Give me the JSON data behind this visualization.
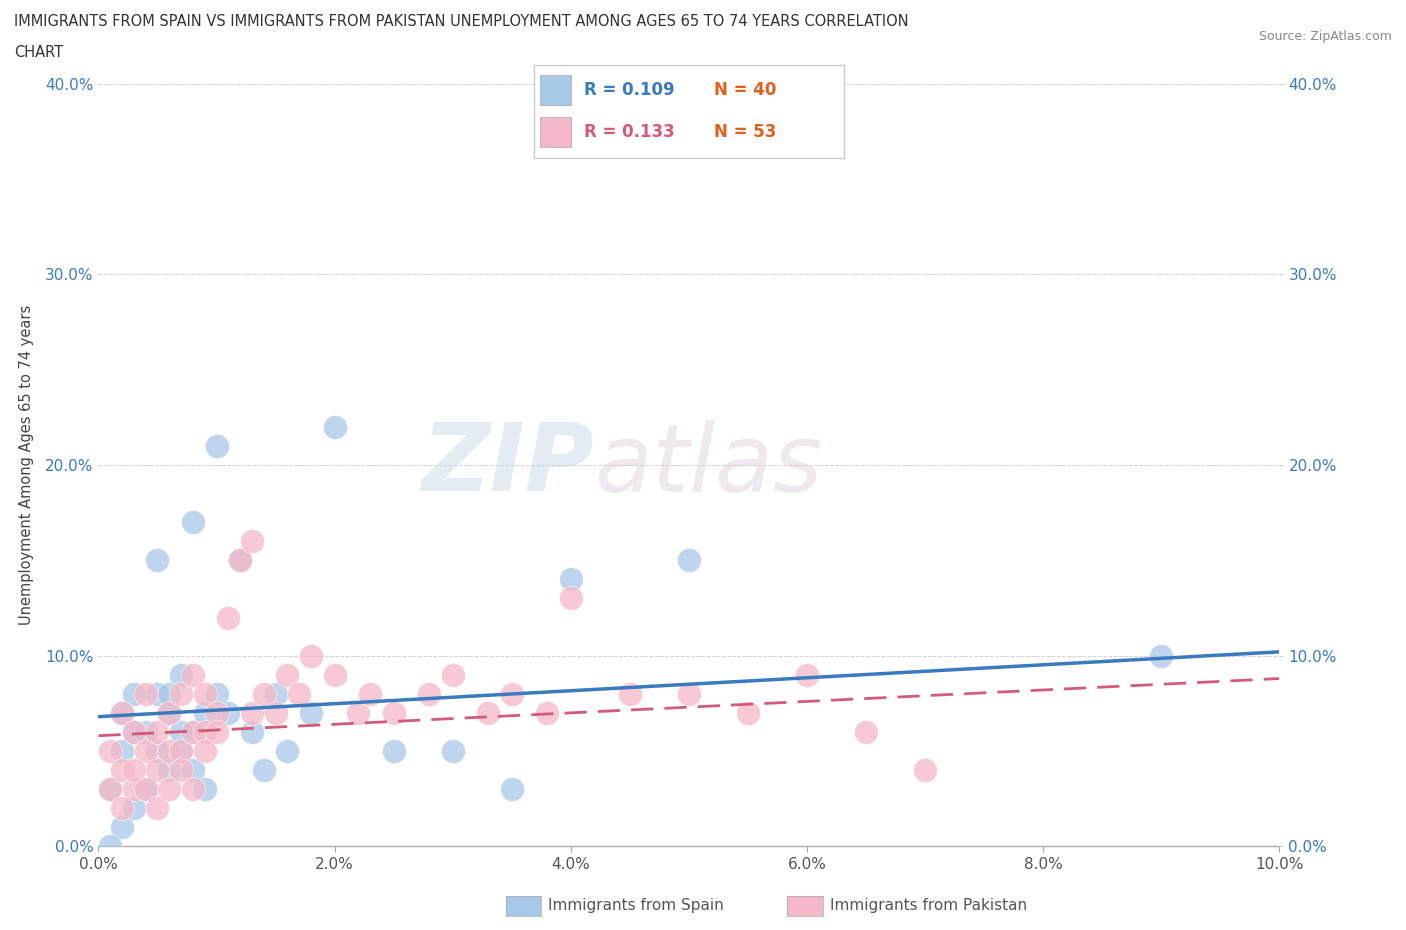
{
  "title_line1": "IMMIGRANTS FROM SPAIN VS IMMIGRANTS FROM PAKISTAN UNEMPLOYMENT AMONG AGES 65 TO 74 YEARS CORRELATION",
  "title_line2": "CHART",
  "source": "Source: ZipAtlas.com",
  "ylabel": "Unemployment Among Ages 65 to 74 years",
  "xlabel_label_spain": "Immigrants from Spain",
  "xlabel_label_pakistan": "Immigrants from Pakistan",
  "xlim": [
    0.0,
    0.1
  ],
  "ylim": [
    0.0,
    0.4
  ],
  "xticks": [
    0.0,
    0.02,
    0.04,
    0.06,
    0.08,
    0.1
  ],
  "yticks": [
    0.0,
    0.1,
    0.2,
    0.3,
    0.4
  ],
  "xtick_labels": [
    "0.0%",
    "2.0%",
    "4.0%",
    "6.0%",
    "8.0%",
    "10.0%"
  ],
  "ytick_labels": [
    "0.0%",
    "10.0%",
    "20.0%",
    "30.0%",
    "40.0%"
  ],
  "spain_R": 0.109,
  "spain_N": 40,
  "pakistan_R": 0.133,
  "pakistan_N": 53,
  "spain_color": "#a8c8e8",
  "pakistan_color": "#f5b8c8",
  "spain_trend_color": "#3a7abf",
  "pakistan_trend_color": "#d45a7a",
  "watermark_zip": "ZIP",
  "watermark_atlas": "atlas",
  "spain_x": [
    0.001,
    0.002,
    0.002,
    0.003,
    0.003,
    0.004,
    0.005,
    0.005,
    0.006,
    0.006,
    0.007,
    0.007,
    0.008,
    0.008,
    0.009,
    0.009,
    0.01,
    0.01,
    0.011,
    0.012,
    0.013,
    0.014,
    0.015,
    0.016,
    0.018,
    0.02,
    0.025,
    0.03,
    0.035,
    0.04,
    0.001,
    0.002,
    0.003,
    0.004,
    0.005,
    0.006,
    0.007,
    0.008,
    0.05,
    0.09
  ],
  "spain_y": [
    0.03,
    0.01,
    0.05,
    0.02,
    0.06,
    0.03,
    0.05,
    0.08,
    0.04,
    0.07,
    0.05,
    0.09,
    0.06,
    0.04,
    0.07,
    0.03,
    0.21,
    0.08,
    0.07,
    0.15,
    0.06,
    0.04,
    0.08,
    0.05,
    0.07,
    0.22,
    0.05,
    0.05,
    0.03,
    0.14,
    0.0,
    0.07,
    0.08,
    0.06,
    0.15,
    0.08,
    0.06,
    0.17,
    0.15,
    0.1
  ],
  "pakistan_x": [
    0.001,
    0.001,
    0.002,
    0.002,
    0.003,
    0.003,
    0.004,
    0.004,
    0.005,
    0.005,
    0.006,
    0.006,
    0.007,
    0.007,
    0.008,
    0.008,
    0.009,
    0.009,
    0.01,
    0.01,
    0.011,
    0.012,
    0.013,
    0.013,
    0.014,
    0.015,
    0.016,
    0.017,
    0.018,
    0.02,
    0.022,
    0.023,
    0.025,
    0.028,
    0.03,
    0.033,
    0.035,
    0.038,
    0.04,
    0.045,
    0.05,
    0.055,
    0.06,
    0.065,
    0.07,
    0.002,
    0.003,
    0.004,
    0.005,
    0.006,
    0.007,
    0.008,
    0.009
  ],
  "pakistan_y": [
    0.03,
    0.05,
    0.04,
    0.07,
    0.03,
    0.06,
    0.05,
    0.08,
    0.04,
    0.06,
    0.05,
    0.07,
    0.05,
    0.08,
    0.06,
    0.09,
    0.06,
    0.08,
    0.07,
    0.06,
    0.12,
    0.15,
    0.07,
    0.16,
    0.08,
    0.07,
    0.09,
    0.08,
    0.1,
    0.09,
    0.07,
    0.08,
    0.07,
    0.08,
    0.09,
    0.07,
    0.08,
    0.07,
    0.13,
    0.08,
    0.08,
    0.07,
    0.09,
    0.06,
    0.04,
    0.02,
    0.04,
    0.03,
    0.02,
    0.03,
    0.04,
    0.03,
    0.05
  ],
  "spain_trend_x0": 0.0,
  "spain_trend_y0": 0.068,
  "spain_trend_x1": 0.1,
  "spain_trend_y1": 0.102,
  "pakistan_trend_x0": 0.0,
  "pakistan_trend_y0": 0.058,
  "pakistan_trend_x1": 0.1,
  "pakistan_trend_y1": 0.088
}
